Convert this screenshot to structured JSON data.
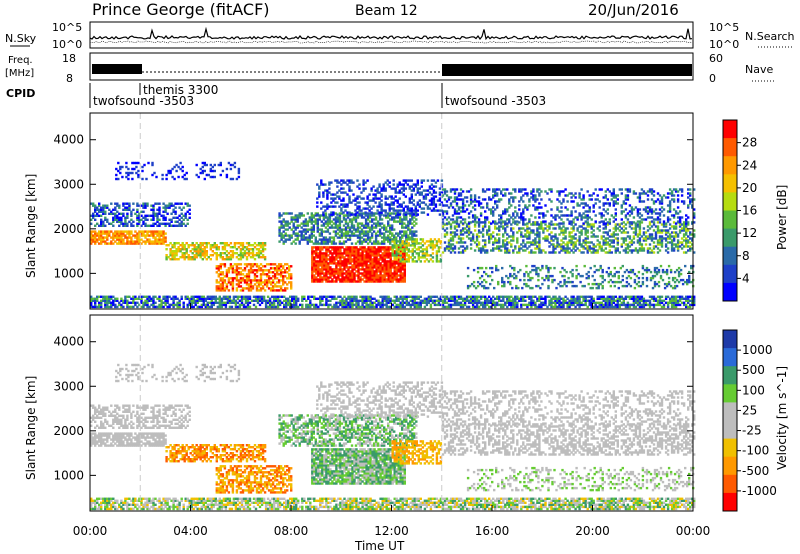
{
  "header": {
    "station": "Prince George (fitACF)",
    "beam": "Beam 12",
    "date": "20/Jun/2016"
  },
  "noise_panel": {
    "left_label": "N.Sky",
    "right_label": "N.Search",
    "left_ticks": [
      "10^5",
      "10^0"
    ],
    "right_ticks": [
      "10^5",
      "10^0"
    ]
  },
  "freq_panel": {
    "left_label_1": "Freq.",
    "left_label_2": "[MHz]",
    "right_label": "Nave",
    "left_ticks": [
      "18",
      "8"
    ],
    "right_ticks": [
      "60",
      "0"
    ]
  },
  "cpid": {
    "label": "CPID",
    "segments": [
      {
        "name": "twofsound -3503",
        "start_hour": 0
      },
      {
        "name": "themis 3300",
        "start_hour": 2
      },
      {
        "name": "twofsound -3503",
        "start_hour": 14
      }
    ]
  },
  "chart_data": [
    {
      "type": "heatmap",
      "quantity": "power",
      "ylabel": "Slant Range [km]",
      "yticks": [
        1000,
        2000,
        3000,
        4000
      ],
      "colorbar_label": "Power [dB]",
      "colorbar_ticks": [
        "28",
        "24",
        "20",
        "16",
        "12",
        "8",
        "4"
      ],
      "colorbar_colors": [
        "#ff0000",
        "#ff5a00",
        "#ff9900",
        "#f5c000",
        "#b6dc10",
        "#5aba3a",
        "#3a9a6a",
        "#2a6aa8",
        "#1e40c8",
        "#0000ff"
      ],
      "x_range_hours": [
        0,
        24
      ],
      "y_range_km": [
        200,
        4600
      ]
    },
    {
      "type": "heatmap",
      "quantity": "velocity",
      "ylabel": "Slant Range [km]",
      "yticks": [
        1000,
        2000,
        3000,
        4000
      ],
      "colorbar_label": "Velocity [m s^-1]",
      "colorbar_ticks": [
        "1000",
        "500",
        "100",
        "25",
        "-25",
        "-100",
        "-500",
        "-1000"
      ],
      "colorbar_colors": [
        "#1e3aa8",
        "#2a6ad8",
        "#3a9a6a",
        "#66cc33",
        "#bdbdbd",
        "#bdbdbd",
        "#f0c000",
        "#ff9900",
        "#ff5a00",
        "#ff0000"
      ],
      "x_range_hours": [
        0,
        24
      ],
      "y_range_km": [
        200,
        4600
      ],
      "xlabel": "Time UT",
      "xticks": [
        "00:00",
        "04:00",
        "08:00",
        "12:00",
        "16:00",
        "20:00",
        "00:00"
      ]
    }
  ]
}
